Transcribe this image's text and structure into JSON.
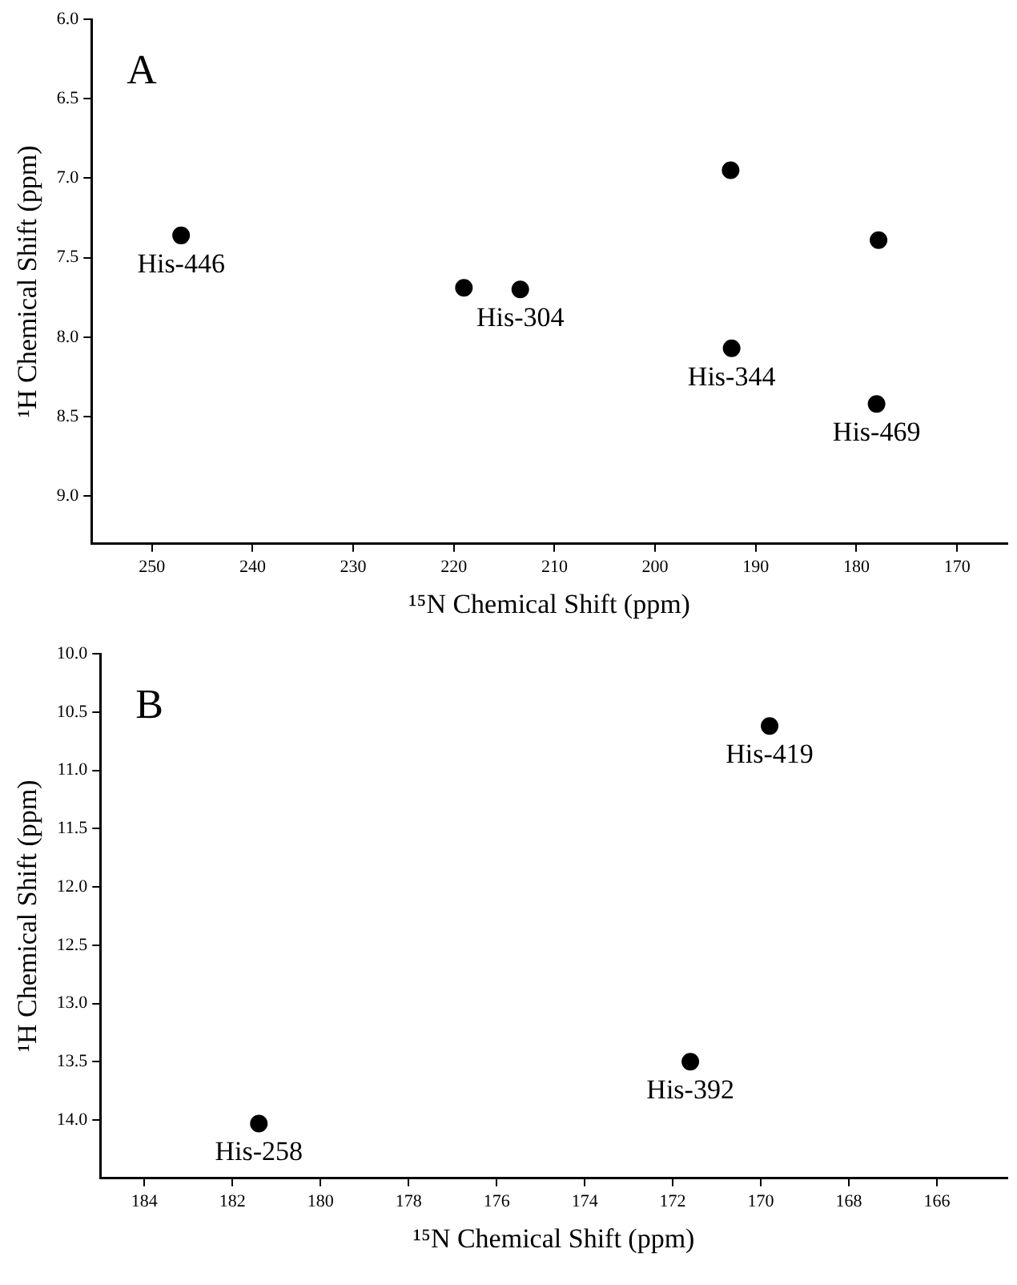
{
  "chart_data": [
    {
      "type": "scatter",
      "xlabel": "¹⁵N Chemical Shift (ppm)",
      "ylabel": "¹H Chemical Shift (ppm)",
      "x": [
        247.1,
        219,
        213.4,
        192.4,
        178,
        192.5,
        177.8
      ],
      "values": [
        7.36,
        7.69,
        7.7,
        8.07,
        8.42,
        6.95,
        7.39
      ],
      "color": "#000000",
      "marker": "circle",
      "xlim": [
        256,
        165
      ],
      "ylim": [
        9.3,
        6.0
      ],
      "xticks": [
        250,
        240,
        230,
        220,
        210,
        200,
        190,
        180,
        170
      ],
      "yticks": [
        {
          "value": 6,
          "label": "6.0"
        },
        {
          "value": 6.5,
          "label": "6.5"
        },
        {
          "value": 7,
          "label": "7.0"
        },
        {
          "value": 7.5,
          "label": "7.5"
        },
        {
          "value": 8,
          "label": "8.0"
        },
        {
          "value": 8.5,
          "label": "8.5"
        },
        {
          "value": 9,
          "label": "9.0"
        }
      ],
      "grid": false,
      "legend": false,
      "annotations": [
        "A",
        {
          "text": "His-446",
          "x": 247.1,
          "y": 7.36
        },
        {
          "text": "His-304",
          "x": 213.4,
          "y": 7.7
        },
        {
          "text": "His-344",
          "x": 192.4,
          "y": 8.07
        },
        {
          "text": "His-469",
          "x": 178,
          "y": 8.42
        }
      ]
    },
    {
      "type": "scatter",
      "xlabel": "¹⁵N Chemical Shift (ppm)",
      "ylabel": "¹H Chemical Shift (ppm)",
      "x": [
        169.8,
        171.6,
        181.4
      ],
      "values": [
        10.62,
        13.5,
        14.03
      ],
      "color": "#000000",
      "marker": "circle",
      "xlim": [
        185,
        164.4
      ],
      "ylim": [
        14.5,
        10.0
      ],
      "xticks": [
        184,
        182,
        180,
        178,
        176,
        174,
        172,
        170,
        168,
        166
      ],
      "yticks": [
        {
          "value": 10,
          "label": "10.0"
        },
        {
          "value": 10.5,
          "label": "10.5"
        },
        {
          "value": 11,
          "label": "11.0"
        },
        {
          "value": 11.5,
          "label": "11.5"
        },
        {
          "value": 12,
          "label": "12.0"
        },
        {
          "value": 12.5,
          "label": "12.5"
        },
        {
          "value": 13,
          "label": "13.0"
        },
        {
          "value": 13.5,
          "label": "13.5"
        },
        {
          "value": 14,
          "label": "14.0"
        }
      ],
      "grid": false,
      "legend": false,
      "annotations": [
        "B",
        {
          "text": "His-419",
          "x": 169.8,
          "y": 10.62
        },
        {
          "text": "His-392",
          "x": 171.6,
          "y": 13.5
        },
        {
          "text": "His-258",
          "x": 181.4,
          "y": 14.03
        }
      ]
    }
  ]
}
